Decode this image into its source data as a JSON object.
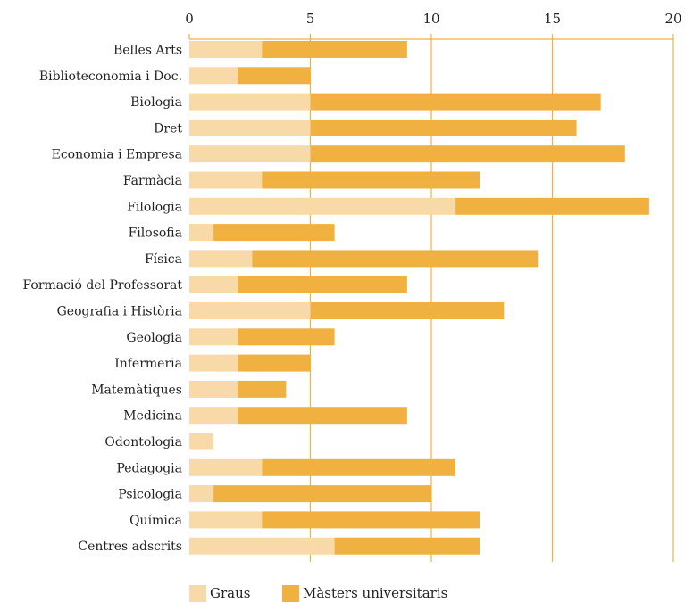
{
  "chart_data": {
    "type": "bar",
    "orientation": "horizontal",
    "stacked": true,
    "categories": [
      "Belles Arts",
      "Biblioteconomia i Doc.",
      "Biologia",
      "Dret",
      "Economia i Empresa",
      "Farmàcia",
      "Filologia",
      "Filosofia",
      "Física",
      "Formació del Professorat",
      "Geografia i Història",
      "Geologia",
      "Infermeria",
      "Matemàtiques",
      "Medicina",
      "Odontologia",
      "Pedagogia",
      "Psicologia",
      "Química",
      "Centres adscrits"
    ],
    "series": [
      {
        "name": "Graus",
        "color": "#f8d9a8",
        "values": [
          3,
          2,
          5,
          5,
          5,
          3,
          11,
          1,
          2.6,
          2,
          5,
          2,
          2,
          2,
          2,
          1,
          3,
          1,
          3,
          6
        ]
      },
      {
        "name": "Màsters universitaris",
        "color": "#f0b140",
        "values": [
          6,
          3,
          12,
          11,
          13,
          9,
          8,
          5,
          11.8,
          7,
          8,
          4,
          3,
          2,
          7,
          0,
          8,
          9,
          9,
          6
        ]
      }
    ],
    "xlim": [
      0,
      20
    ],
    "xticks": [
      0,
      5,
      10,
      15,
      20
    ],
    "xaxis_position": "top",
    "grid": true,
    "gridline_color": "#f0b140",
    "legend_position": "bottom-left",
    "title": "",
    "xlabel": "",
    "ylabel": ""
  }
}
